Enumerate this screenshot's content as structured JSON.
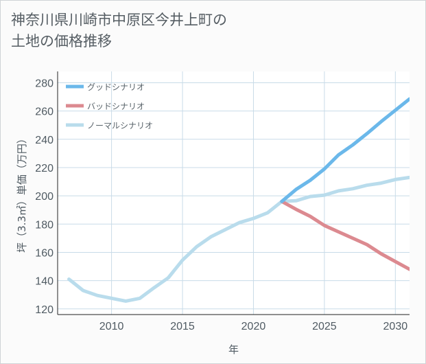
{
  "title": {
    "line1": "神奈川県川崎市中原区今井上町の",
    "line2": "土地の価格推移"
  },
  "chart_data": {
    "type": "line",
    "xlabel": "年",
    "ylabel": "坪（3.3㎡）単価（万円）",
    "xlim": [
      2006.2,
      2031
    ],
    "ylim": [
      116,
      288
    ],
    "xticks": [
      2010,
      2015,
      2020,
      2025,
      2030
    ],
    "yticks": [
      120,
      140,
      160,
      180,
      200,
      220,
      240,
      260,
      280
    ],
    "grid": true,
    "legend_position": "top-left",
    "series": [
      {
        "name": "グッドシナリオ",
        "color": "#6bb8ea",
        "x": [
          2022,
          2023,
          2024,
          2025,
          2026,
          2027,
          2028,
          2029,
          2030,
          2031
        ],
        "y": [
          196,
          204.5,
          211,
          219,
          229,
          236,
          244,
          252.5,
          260.5,
          268.5
        ]
      },
      {
        "name": "バッドシナリオ",
        "color": "#dc8a90",
        "x": [
          2022,
          2023,
          2024,
          2025,
          2026,
          2027,
          2028,
          2029,
          2030,
          2031
        ],
        "y": [
          196,
          190.5,
          185.5,
          179,
          174.5,
          170,
          165.5,
          159,
          153.5,
          148
        ]
      },
      {
        "name": "ノーマルシナリオ",
        "color": "#b9dcec",
        "x": [
          2007,
          2008,
          2009,
          2010,
          2011,
          2012,
          2013,
          2014,
          2015,
          2016,
          2017,
          2018,
          2019,
          2020,
          2021,
          2022,
          2023,
          2024,
          2025,
          2026,
          2027,
          2028,
          2029,
          2030,
          2031
        ],
        "y": [
          141,
          133,
          129.5,
          127.5,
          125.5,
          127.5,
          135,
          142,
          154.5,
          164,
          171,
          176,
          181,
          184,
          188,
          196,
          196.5,
          199.5,
          200.5,
          203.5,
          205,
          207.5,
          209,
          211.5,
          213
        ]
      }
    ]
  }
}
